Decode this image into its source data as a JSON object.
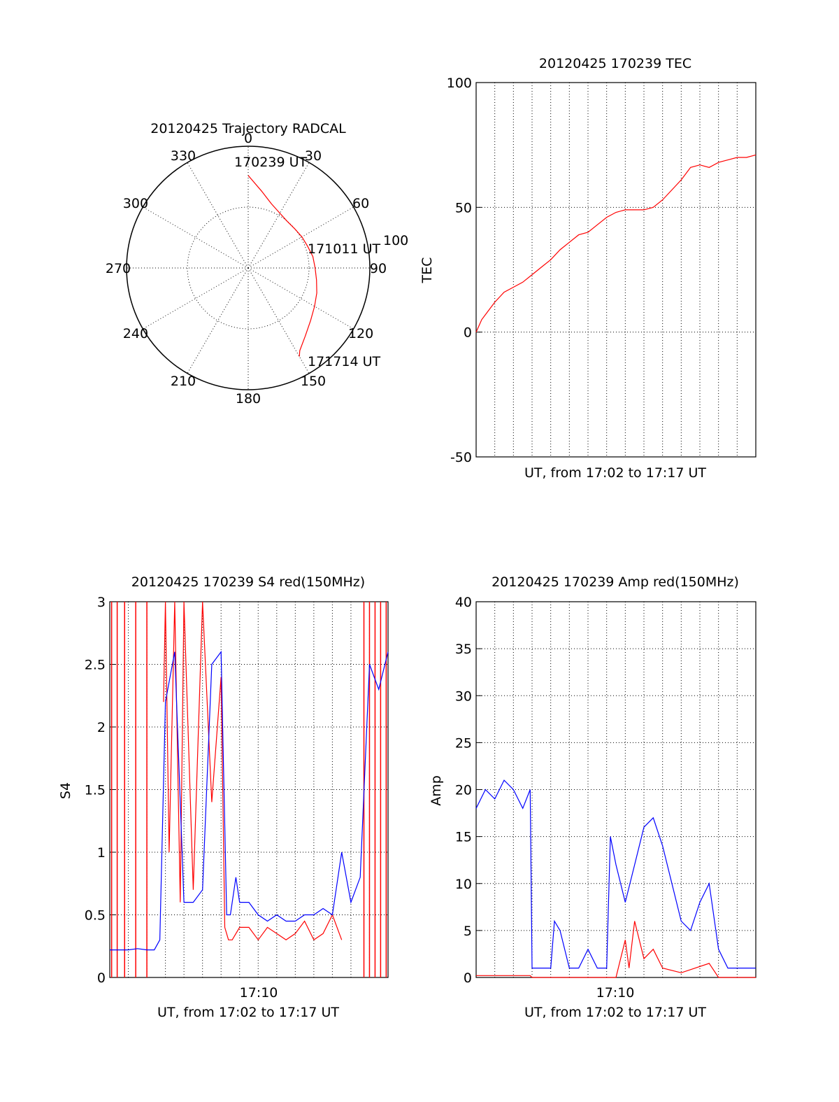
{
  "chart_data": [
    {
      "type": "polar",
      "title": "20120425 Trajectory RADCAL",
      "angle_labels": [
        "0",
        "30",
        "60",
        "90",
        "120",
        "150",
        "180",
        "210",
        "240",
        "270",
        "300",
        "330"
      ],
      "radius_label": "100",
      "radius_max": 100,
      "rings": [
        50,
        100
      ],
      "trajectory": {
        "color": "#ff0000",
        "points": [
          [
            0,
            76
          ],
          [
            10,
            64
          ],
          [
            20,
            56
          ],
          [
            30,
            52
          ],
          [
            40,
            50
          ],
          [
            50,
            50
          ],
          [
            60,
            51
          ],
          [
            70,
            52
          ],
          [
            80,
            54
          ],
          [
            90,
            55
          ],
          [
            100,
            57
          ],
          [
            110,
            60
          ],
          [
            120,
            63
          ],
          [
            130,
            67
          ],
          [
            140,
            73
          ],
          [
            148,
            80
          ],
          [
            150,
            84
          ]
        ],
        "annotations": [
          "170239 UT",
          "171011 UT",
          "171714 UT"
        ]
      }
    },
    {
      "type": "line",
      "title": "20120425 170239 TEC",
      "ylabel": "TEC",
      "xlabel": "UT, from 17:02 to 17:17 UT",
      "ylim": [
        -50,
        100
      ],
      "yticks": [
        "100",
        "50",
        "0",
        "-50"
      ],
      "grid": true,
      "series": [
        {
          "color": "#ff0000",
          "x": [
            0,
            0.3,
            0.6,
            1.0,
            1.5,
            2.0,
            2.5,
            3.0,
            3.5,
            4.0,
            4.5,
            5.0,
            5.5,
            6.0,
            6.5,
            7.0,
            7.5,
            8.0,
            8.5,
            9.0,
            9.5,
            10.0,
            10.5,
            11.0,
            11.5,
            12.0,
            12.5,
            13.0,
            13.5,
            14.0,
            14.5,
            15.0
          ],
          "values": [
            0,
            5,
            8,
            12,
            16,
            18,
            20,
            23,
            26,
            29,
            33,
            36,
            39,
            40,
            43,
            46,
            48,
            49,
            49,
            49,
            50,
            53,
            57,
            61,
            66,
            67,
            66,
            68,
            69,
            70,
            70,
            71
          ]
        }
      ]
    },
    {
      "type": "line",
      "title": "20120425 170239 S4 red(150MHz)",
      "ylabel": "S4",
      "xlabel": "UT, from 17:02 to 17:17 UT",
      "xtick": "17:10",
      "ylim": [
        0,
        3
      ],
      "yticks": [
        "3",
        "2.5",
        "2",
        "1.5",
        "1",
        "0.5",
        "0"
      ],
      "grid": true,
      "series": [
        {
          "color": "#ff0000",
          "x": [
            2.9,
            3.0,
            3.2,
            3.5,
            3.8,
            4.0,
            4.5,
            5.0,
            5.5,
            6.0,
            6.2,
            6.4,
            6.6,
            7.0,
            7.5,
            8.0,
            8.5,
            9.0,
            9.5,
            10.0,
            10.5,
            11.0,
            11.5,
            12.0,
            12.5
          ],
          "values": [
            2.2,
            3.0,
            1.0,
            3.0,
            0.6,
            3.0,
            0.7,
            3.0,
            1.4,
            2.4,
            0.4,
            0.3,
            0.3,
            0.4,
            0.4,
            0.3,
            0.4,
            0.35,
            0.3,
            0.35,
            0.45,
            0.3,
            0.35,
            0.5,
            0.3
          ]
        },
        {
          "color": "#0000ff",
          "x": [
            0,
            0.5,
            1.0,
            1.5,
            2.0,
            2.4,
            2.7,
            3.0,
            3.5,
            4.0,
            4.5,
            5.0,
            5.5,
            6.0,
            6.3,
            6.5,
            6.8,
            7.0,
            7.5,
            8.0,
            8.5,
            9.0,
            9.5,
            10.0,
            10.5,
            11.0,
            11.5,
            12.0,
            12.5,
            13.0,
            13.5,
            14.0,
            14.5,
            15.0
          ],
          "values": [
            0.22,
            0.22,
            0.22,
            0.23,
            0.22,
            0.22,
            0.3,
            2.2,
            2.6,
            0.6,
            0.6,
            0.7,
            2.5,
            2.6,
            0.5,
            0.5,
            0.8,
            0.6,
            0.6,
            0.5,
            0.45,
            0.5,
            0.45,
            0.45,
            0.5,
            0.5,
            0.55,
            0.5,
            1.0,
            0.6,
            0.8,
            2.5,
            2.3,
            2.6
          ]
        }
      ],
      "red_vertical_lines_x": [
        0.1,
        0.4,
        0.8,
        1.4,
        2.0,
        13.7,
        14.0,
        14.3,
        14.6,
        14.9
      ]
    },
    {
      "type": "line",
      "title": "20120425 170239 Amp red(150MHz)",
      "ylabel": "Amp",
      "xlabel": "UT, from 17:02 to 17:17 UT",
      "xtick": "17:10",
      "ylim": [
        0,
        40
      ],
      "yticks": [
        "40",
        "35",
        "30",
        "25",
        "20",
        "15",
        "10",
        "5",
        "0"
      ],
      "grid": true,
      "series": [
        {
          "color": "#0000ff",
          "x": [
            0,
            0.5,
            1.0,
            1.5,
            2.0,
            2.5,
            2.9,
            3.0,
            3.5,
            4.0,
            4.2,
            4.5,
            5.0,
            5.5,
            6.0,
            6.5,
            7.0,
            7.2,
            7.5,
            8.0,
            8.5,
            9.0,
            9.5,
            10.0,
            10.5,
            11.0,
            11.5,
            12.0,
            12.5,
            13.0,
            13.5,
            14.0,
            14.5,
            15.0
          ],
          "values": [
            18,
            20,
            19,
            21,
            20,
            18,
            20,
            1,
            1,
            1,
            6,
            5,
            1,
            1,
            3,
            1,
            1,
            15,
            12,
            8,
            12,
            16,
            17,
            14,
            10,
            6,
            5,
            8,
            10,
            3,
            1,
            1,
            1,
            1
          ]
        },
        {
          "color": "#ff0000",
          "x": [
            0,
            1.0,
            2.0,
            2.9,
            3.0,
            7.5,
            8.0,
            8.2,
            8.5,
            9.0,
            9.5,
            10.0,
            11.0,
            12.5,
            13.0,
            15.0
          ],
          "values": [
            0.2,
            0.2,
            0.2,
            0.2,
            0,
            0,
            4,
            1,
            6,
            2,
            3,
            1,
            0.5,
            1.5,
            0,
            0
          ]
        }
      ]
    }
  ]
}
